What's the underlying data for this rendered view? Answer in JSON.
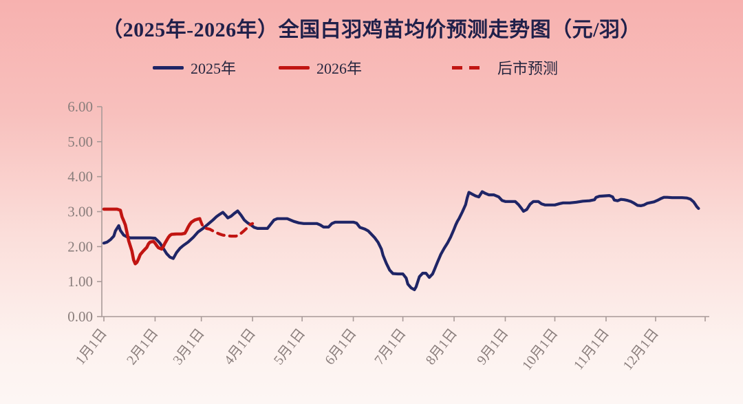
{
  "title": "（2025年-2026年）全国白羽鸡苗均价预测走势图（元/羽）",
  "legend": {
    "items": [
      {
        "label": "2025年",
        "color": "#1f2566",
        "style": "solid"
      },
      {
        "label": "2026年",
        "color": "#c11512",
        "style": "solid"
      },
      {
        "label": "后市预测",
        "color": "#c11512",
        "style": "dashed"
      }
    ]
  },
  "colors": {
    "background_top": "#f7b1af",
    "background_bottom": "#fdf6f4",
    "title_text": "#20204a",
    "series_2025": "#1f2566",
    "series_2026": "#c11512",
    "axis": "#a89a98",
    "tick_label": "#8a7e7c"
  },
  "chart_data": {
    "type": "line",
    "title": "（2025年-2026年）全国白羽鸡苗均价预测走势图（元/羽）",
    "unit": "元/羽",
    "xlabel": "",
    "ylabel": "",
    "ylim": [
      0,
      6
    ],
    "grid": false,
    "legend_position": "top",
    "y_ticks": [
      "0.00",
      "1.00",
      "2.00",
      "3.00",
      "4.00",
      "5.00",
      "6.00"
    ],
    "x_tick_labels": [
      "1月1日",
      "2月1日",
      "3月1日",
      "4月1日",
      "5月1日",
      "6月1日",
      "7月1日",
      "8月1日",
      "9月1日",
      "10月1日",
      "11月1日",
      "12月1日"
    ],
    "x_tick_days": [
      0,
      31,
      59,
      90,
      120,
      151,
      181,
      212,
      243,
      273,
      304,
      334
    ],
    "x_axis_end_day": 364,
    "axis_color": "#a89a98",
    "tick_label_color": "#8a7e7c",
    "series": [
      {
        "name": "2025年",
        "color": "#1f2566",
        "dash": false,
        "width": 4.2,
        "points": [
          [
            0,
            2.1
          ],
          [
            2,
            2.13
          ],
          [
            4,
            2.2
          ],
          [
            6,
            2.3
          ],
          [
            7,
            2.45
          ],
          [
            9,
            2.6
          ],
          [
            10,
            2.46
          ],
          [
            12,
            2.33
          ],
          [
            14,
            2.28
          ],
          [
            16,
            2.25
          ],
          [
            20,
            2.25
          ],
          [
            24,
            2.25
          ],
          [
            28,
            2.25
          ],
          [
            31,
            2.24
          ],
          [
            33,
            2.15
          ],
          [
            34,
            2.1
          ],
          [
            36,
            1.95
          ],
          [
            38,
            1.8
          ],
          [
            40,
            1.7
          ],
          [
            42,
            1.66
          ],
          [
            44,
            1.83
          ],
          [
            46,
            1.95
          ],
          [
            48,
            2.03
          ],
          [
            51,
            2.13
          ],
          [
            54,
            2.26
          ],
          [
            57,
            2.42
          ],
          [
            60,
            2.52
          ],
          [
            62,
            2.6
          ],
          [
            64,
            2.68
          ],
          [
            66,
            2.76
          ],
          [
            68,
            2.85
          ],
          [
            70,
            2.92
          ],
          [
            72,
            2.98
          ],
          [
            74,
            2.88
          ],
          [
            75,
            2.82
          ],
          [
            77,
            2.87
          ],
          [
            79,
            2.95
          ],
          [
            81,
            3.02
          ],
          [
            83,
            2.9
          ],
          [
            85,
            2.76
          ],
          [
            87,
            2.68
          ],
          [
            89,
            2.62
          ],
          [
            91,
            2.55
          ],
          [
            93,
            2.52
          ],
          [
            96,
            2.52
          ],
          [
            99,
            2.52
          ],
          [
            101,
            2.64
          ],
          [
            103,
            2.76
          ],
          [
            105,
            2.8
          ],
          [
            108,
            2.8
          ],
          [
            111,
            2.8
          ],
          [
            113,
            2.76
          ],
          [
            115,
            2.72
          ],
          [
            118,
            2.68
          ],
          [
            121,
            2.66
          ],
          [
            125,
            2.66
          ],
          [
            129,
            2.66
          ],
          [
            131,
            2.62
          ],
          [
            133,
            2.56
          ],
          [
            136,
            2.56
          ],
          [
            138,
            2.66
          ],
          [
            140,
            2.7
          ],
          [
            144,
            2.7
          ],
          [
            148,
            2.7
          ],
          [
            151,
            2.7
          ],
          [
            153,
            2.67
          ],
          [
            155,
            2.55
          ],
          [
            158,
            2.5
          ],
          [
            160,
            2.45
          ],
          [
            162,
            2.35
          ],
          [
            164,
            2.25
          ],
          [
            166,
            2.12
          ],
          [
            168,
            1.93
          ],
          [
            169,
            1.75
          ],
          [
            171,
            1.52
          ],
          [
            173,
            1.33
          ],
          [
            175,
            1.23
          ],
          [
            178,
            1.22
          ],
          [
            181,
            1.22
          ],
          [
            183,
            1.1
          ],
          [
            184,
            0.93
          ],
          [
            186,
            0.82
          ],
          [
            188,
            0.77
          ],
          [
            189,
            0.85
          ],
          [
            191,
            1.14
          ],
          [
            193,
            1.24
          ],
          [
            195,
            1.24
          ],
          [
            197,
            1.12
          ],
          [
            199,
            1.22
          ],
          [
            200,
            1.33
          ],
          [
            202,
            1.56
          ],
          [
            204,
            1.78
          ],
          [
            206,
            1.95
          ],
          [
            208,
            2.1
          ],
          [
            210,
            2.28
          ],
          [
            212,
            2.5
          ],
          [
            213,
            2.62
          ],
          [
            214,
            2.72
          ],
          [
            215,
            2.8
          ],
          [
            217,
            2.99
          ],
          [
            219,
            3.2
          ],
          [
            220,
            3.4
          ],
          [
            221,
            3.55
          ],
          [
            223,
            3.5
          ],
          [
            225,
            3.45
          ],
          [
            227,
            3.42
          ],
          [
            229,
            3.57
          ],
          [
            231,
            3.52
          ],
          [
            233,
            3.48
          ],
          [
            236,
            3.48
          ],
          [
            239,
            3.42
          ],
          [
            241,
            3.32
          ],
          [
            243,
            3.29
          ],
          [
            246,
            3.29
          ],
          [
            249,
            3.29
          ],
          [
            251,
            3.2
          ],
          [
            253,
            3.08
          ],
          [
            254,
            3.01
          ],
          [
            256,
            3.06
          ],
          [
            258,
            3.21
          ],
          [
            260,
            3.29
          ],
          [
            263,
            3.29
          ],
          [
            265,
            3.22
          ],
          [
            267,
            3.19
          ],
          [
            270,
            3.19
          ],
          [
            273,
            3.19
          ],
          [
            276,
            3.23
          ],
          [
            278,
            3.25
          ],
          [
            282,
            3.25
          ],
          [
            286,
            3.27
          ],
          [
            290,
            3.3
          ],
          [
            294,
            3.31
          ],
          [
            297,
            3.34
          ],
          [
            298,
            3.41
          ],
          [
            300,
            3.44
          ],
          [
            303,
            3.45
          ],
          [
            306,
            3.46
          ],
          [
            308,
            3.42
          ],
          [
            309,
            3.33
          ],
          [
            311,
            3.31
          ],
          [
            313,
            3.35
          ],
          [
            315,
            3.34
          ],
          [
            317,
            3.32
          ],
          [
            319,
            3.29
          ],
          [
            321,
            3.24
          ],
          [
            323,
            3.18
          ],
          [
            325,
            3.17
          ],
          [
            327,
            3.19
          ],
          [
            329,
            3.24
          ],
          [
            331,
            3.26
          ],
          [
            333,
            3.28
          ],
          [
            335,
            3.32
          ],
          [
            337,
            3.37
          ],
          [
            339,
            3.41
          ],
          [
            341,
            3.41
          ],
          [
            344,
            3.4
          ],
          [
            347,
            3.4
          ],
          [
            350,
            3.4
          ],
          [
            353,
            3.39
          ],
          [
            355,
            3.36
          ],
          [
            357,
            3.28
          ],
          [
            358,
            3.21
          ],
          [
            359,
            3.14
          ],
          [
            360,
            3.09
          ]
        ]
      },
      {
        "name": "2026年",
        "color": "#c11512",
        "dash": false,
        "width": 4.6,
        "points": [
          [
            0,
            3.07
          ],
          [
            4,
            3.07
          ],
          [
            8,
            3.07
          ],
          [
            10,
            3.04
          ],
          [
            11,
            2.85
          ],
          [
            12,
            2.74
          ],
          [
            13,
            2.62
          ],
          [
            14,
            2.4
          ],
          [
            15,
            2.17
          ],
          [
            16,
            2.02
          ],
          [
            17,
            1.87
          ],
          [
            18,
            1.62
          ],
          [
            19,
            1.51
          ],
          [
            20,
            1.55
          ],
          [
            21,
            1.65
          ],
          [
            22,
            1.77
          ],
          [
            24,
            1.88
          ],
          [
            26,
            1.98
          ],
          [
            27,
            2.08
          ],
          [
            28,
            2.13
          ],
          [
            30,
            2.15
          ],
          [
            31,
            2.1
          ],
          [
            32,
            2.03
          ],
          [
            33,
            1.97
          ],
          [
            34,
            1.95
          ],
          [
            35,
            1.93
          ],
          [
            36,
            2.0
          ],
          [
            37,
            2.1
          ],
          [
            38,
            2.18
          ],
          [
            39,
            2.26
          ],
          [
            40,
            2.32
          ],
          [
            41,
            2.35
          ],
          [
            44,
            2.36
          ],
          [
            47,
            2.36
          ],
          [
            49,
            2.38
          ],
          [
            50,
            2.46
          ],
          [
            51,
            2.56
          ],
          [
            52,
            2.64
          ],
          [
            53,
            2.7
          ],
          [
            55,
            2.76
          ],
          [
            57,
            2.79
          ],
          [
            58,
            2.8
          ]
        ]
      },
      {
        "name": "后市预测",
        "color": "#c11512",
        "dash": true,
        "width": 4.2,
        "points": [
          [
            58,
            2.8
          ],
          [
            59,
            2.68
          ],
          [
            60,
            2.57
          ],
          [
            62,
            2.52
          ],
          [
            64,
            2.5
          ],
          [
            66,
            2.45
          ],
          [
            68,
            2.4
          ],
          [
            70,
            2.36
          ],
          [
            72,
            2.33
          ],
          [
            75,
            2.31
          ],
          [
            77,
            2.3
          ],
          [
            80,
            2.3
          ],
          [
            82,
            2.34
          ],
          [
            84,
            2.42
          ],
          [
            85,
            2.46
          ],
          [
            87,
            2.55
          ],
          [
            88,
            2.62
          ],
          [
            90,
            2.66
          ]
        ]
      }
    ]
  }
}
